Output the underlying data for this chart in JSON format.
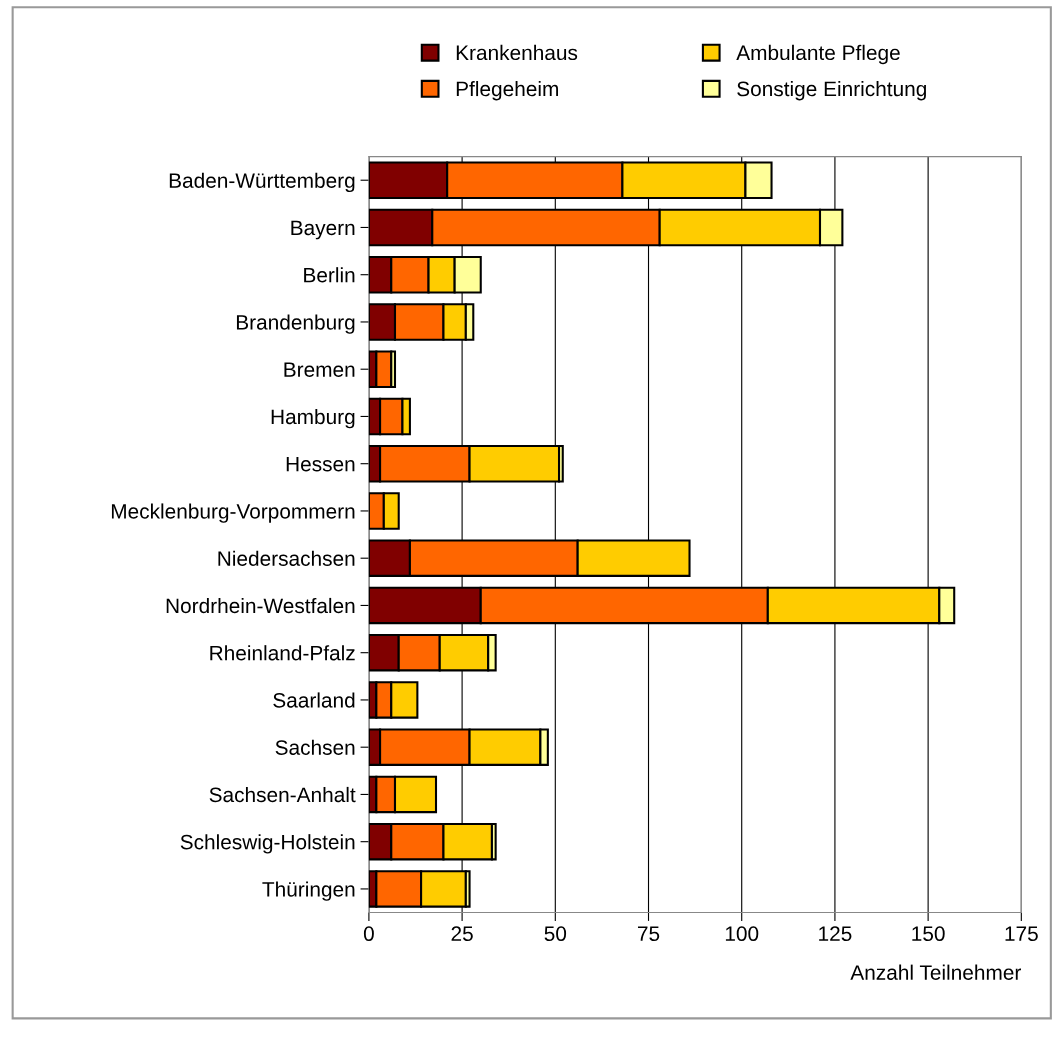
{
  "chart_data": {
    "type": "bar",
    "orientation": "horizontal",
    "stacked": true,
    "xlabel": "Anzahl Teilnehmer",
    "categories": [
      "Baden-Württemberg",
      "Bayern",
      "Berlin",
      "Brandenburg",
      "Bremen",
      "Hamburg",
      "Hessen",
      "Mecklenburg-Vorpommern",
      "Niedersachsen",
      "Nordrhein-Westfalen",
      "Rheinland-Pfalz",
      "Saarland",
      "Sachsen",
      "Sachsen-Anhalt",
      "Schleswig-Holstein",
      "Thüringen"
    ],
    "series": [
      {
        "name": "Krankenhaus",
        "color": "#800000",
        "values": [
          21,
          17,
          6,
          7,
          2,
          3,
          3,
          null,
          11,
          30,
          8,
          2,
          3,
          2,
          6,
          2
        ]
      },
      {
        "name": "Pflegeheim",
        "color": "#ff6600",
        "values": [
          47,
          61,
          10,
          13,
          4,
          6,
          24,
          4,
          45,
          77,
          11,
          4,
          24,
          5,
          14,
          12
        ]
      },
      {
        "name": "Ambulante Pflege",
        "color": "#ffcc00",
        "values": [
          33,
          43,
          7,
          6,
          null,
          2,
          24,
          4,
          30,
          46,
          13,
          7,
          19,
          11,
          13,
          12
        ]
      },
      {
        "name": "Sonstige Einrichtung",
        "color": "#ffff99",
        "values": [
          7,
          6,
          7,
          2,
          1,
          null,
          1,
          null,
          null,
          4,
          2,
          null,
          2,
          null,
          1,
          1
        ]
      }
    ],
    "xlim": [
      0,
      175
    ],
    "xticks": [
      0,
      25,
      50,
      75,
      100,
      125,
      150,
      175
    ],
    "grid": "x",
    "legend": "top"
  }
}
